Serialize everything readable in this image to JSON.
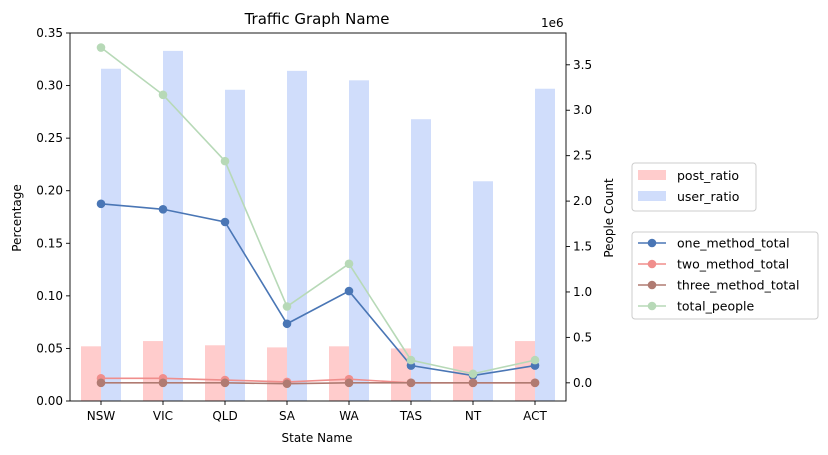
{
  "chart_data": {
    "type": "bar",
    "title": "Traffic Graph Name",
    "xlabel": "State Name",
    "ylabel": "Percentage",
    "ylabel_right": "People Count",
    "right_offset_label": "1e6",
    "categories": [
      "NSW",
      "VIC",
      "QLD",
      "SA",
      "WA",
      "TAS",
      "NT",
      "ACT"
    ],
    "ylim": [
      0,
      0.35
    ],
    "yticks": [
      "0.00",
      "0.05",
      "0.10",
      "0.15",
      "0.20",
      "0.25",
      "0.30",
      "0.35"
    ],
    "ylim_right": [
      -0.2,
      3.85
    ],
    "yticks_right": [
      "0.0",
      "0.5",
      "1.0",
      "1.5",
      "2.0",
      "2.5",
      "3.0",
      "3.5"
    ],
    "bar_series": [
      {
        "name": "post_ratio",
        "color": "#ffcccc",
        "values": [
          0.052,
          0.057,
          0.053,
          0.051,
          0.052,
          0.05,
          0.052,
          0.057
        ]
      },
      {
        "name": "user_ratio",
        "color": "#d0ddfb",
        "values": [
          0.316,
          0.333,
          0.296,
          0.314,
          0.305,
          0.268,
          0.209,
          0.297
        ]
      }
    ],
    "line_series": [
      {
        "name": "one_method_total",
        "color": "#4a76b5",
        "values": [
          1.97,
          1.91,
          1.77,
          0.65,
          1.01,
          0.19,
          0.08,
          0.19
        ]
      },
      {
        "name": "two_method_total",
        "color": "#f08e8c",
        "values": [
          0.05,
          0.05,
          0.03,
          0.01,
          0.04,
          0.0,
          0.0,
          0.0
        ]
      },
      {
        "name": "three_method_total",
        "color": "#b07b72",
        "values": [
          0.0,
          0.0,
          0.0,
          -0.01,
          0.0,
          0.0,
          0.0,
          0.0
        ]
      },
      {
        "name": "total_people",
        "color": "#b7d9b7",
        "values": [
          3.69,
          3.17,
          2.44,
          0.84,
          1.31,
          0.25,
          0.1,
          0.25
        ]
      }
    ],
    "legend_placement": "outside-right",
    "grid": false
  }
}
